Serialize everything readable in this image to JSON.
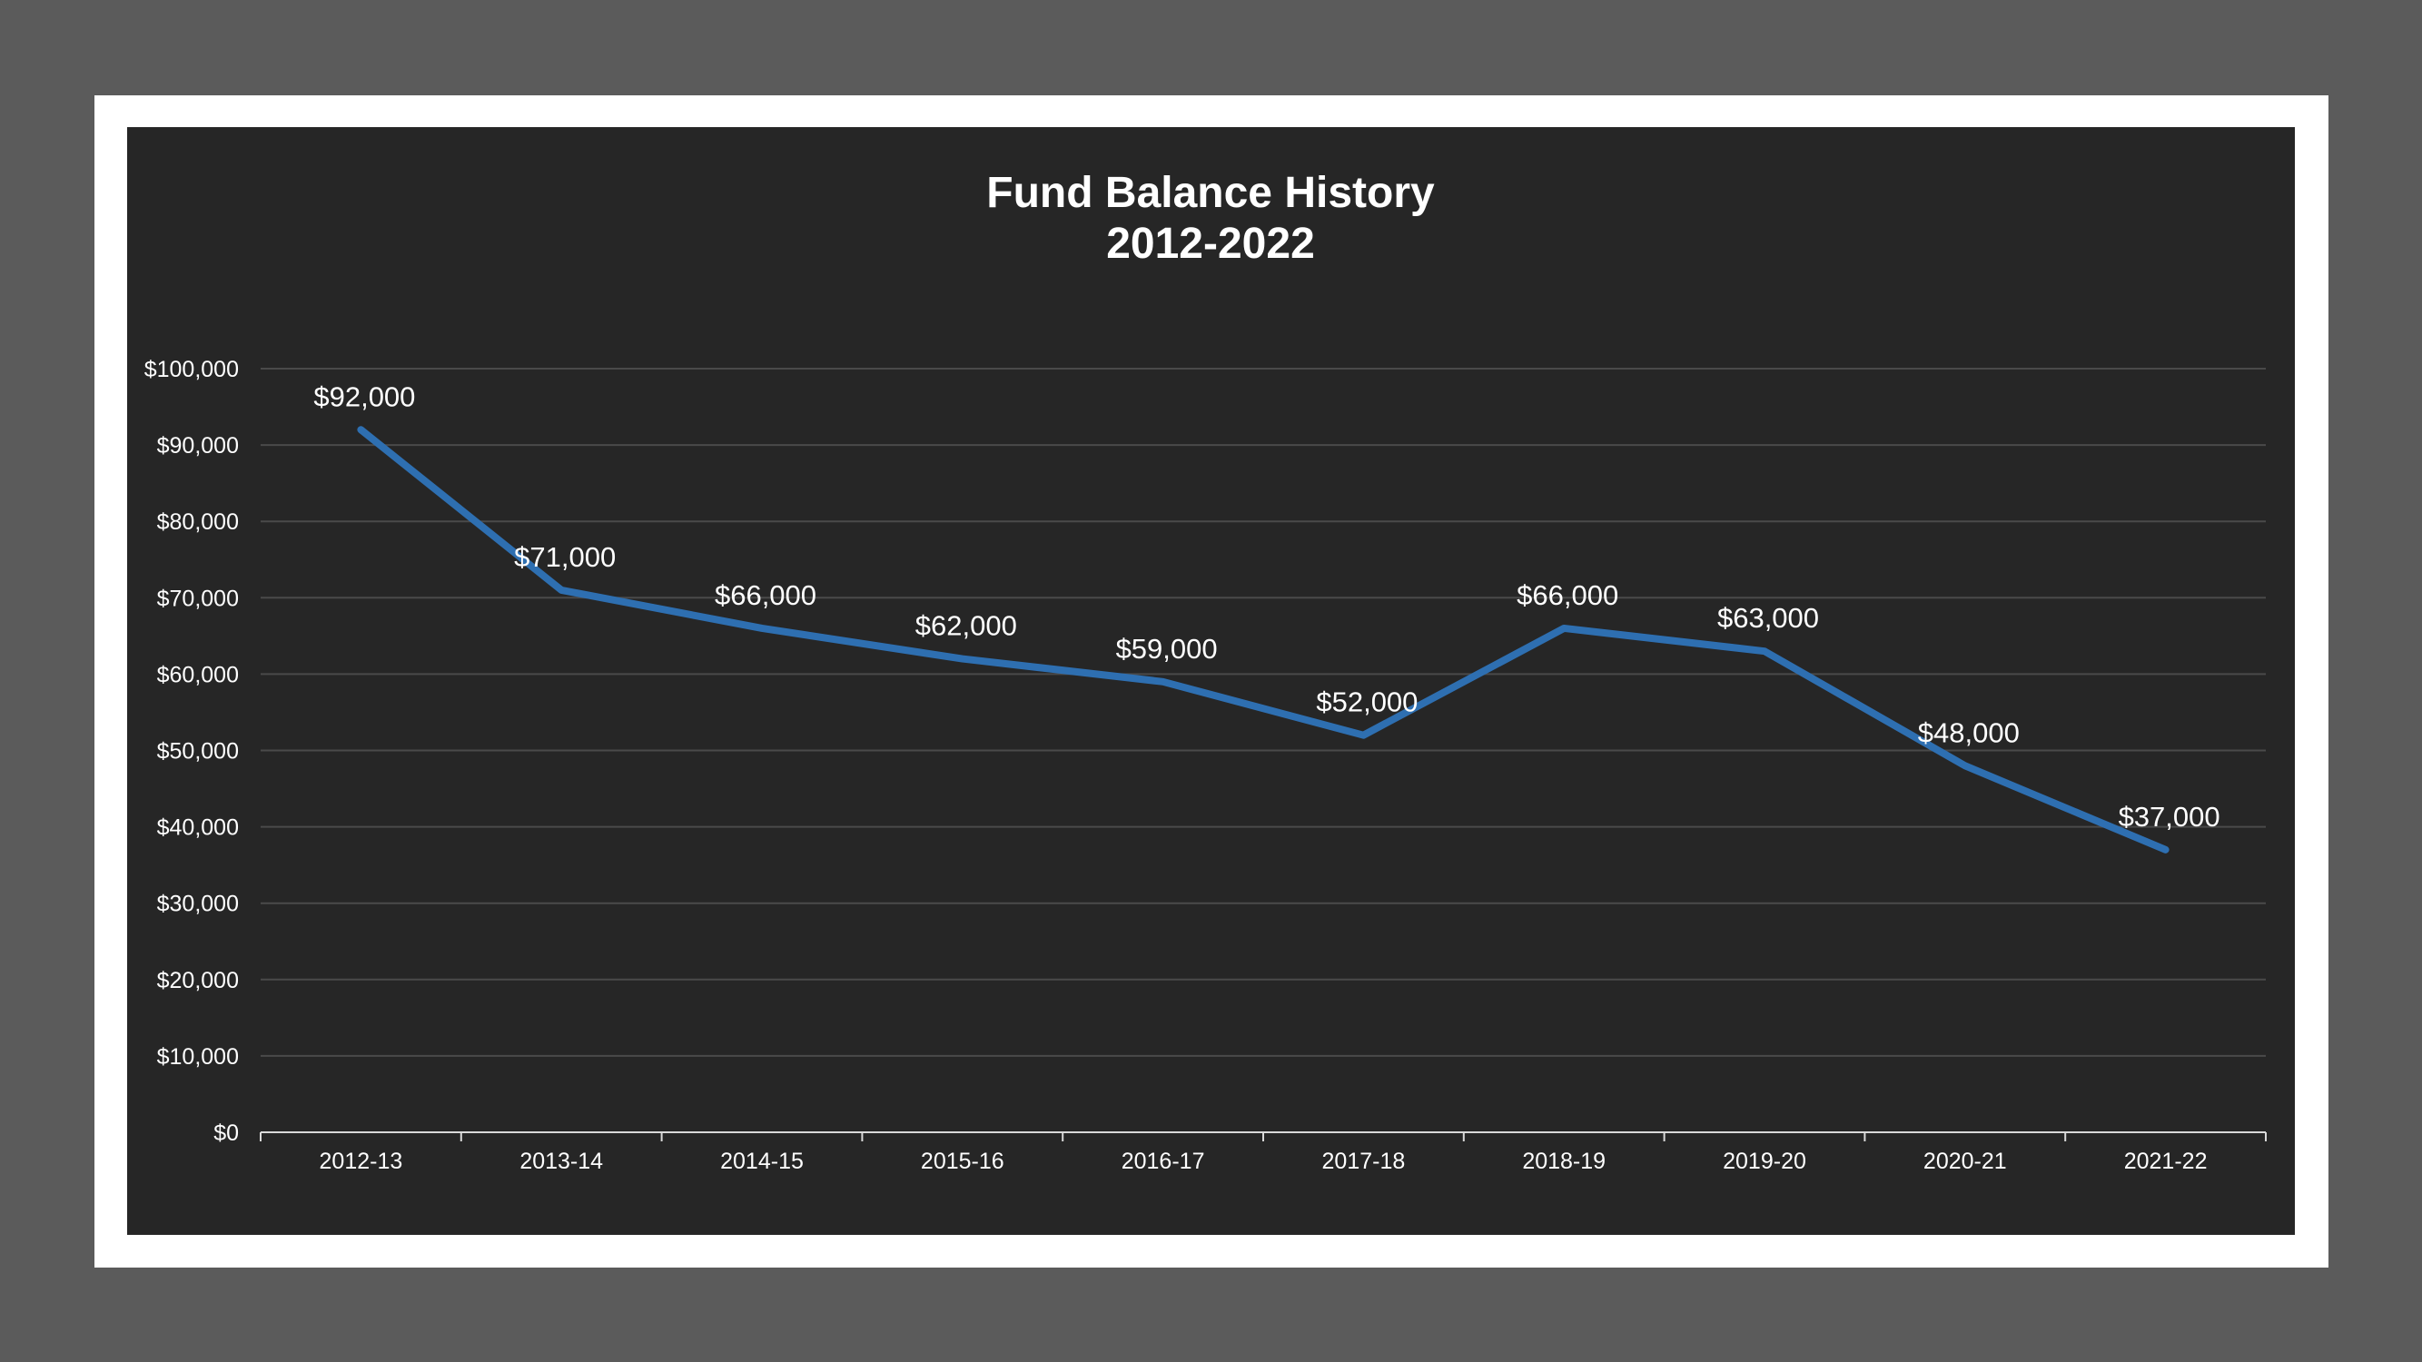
{
  "chart_data": {
    "type": "line",
    "title": "Fund Balance History",
    "subtitle": "2012-2022",
    "xlabel": "",
    "ylabel": "",
    "categories": [
      "2012-13",
      "2013-14",
      "2014-15",
      "2015-16",
      "2016-17",
      "2017-18",
      "2018-19",
      "2019-20",
      "2020-21",
      "2021-22"
    ],
    "series": [
      {
        "values": [
          92000,
          71000,
          66000,
          62000,
          59000,
          52000,
          66000,
          63000,
          48000,
          37000
        ],
        "data_labels": [
          "$92,000",
          "$71,000",
          "$66,000",
          "$62,000",
          "$59,000",
          "$52,000",
          "$66,000",
          "$63,000",
          "$48,000",
          "$37,000"
        ],
        "color": "#2e6fb1"
      }
    ],
    "ylim": [
      0,
      100000
    ],
    "yticks": [
      0,
      10000,
      20000,
      30000,
      40000,
      50000,
      60000,
      70000,
      80000,
      90000,
      100000
    ],
    "ytick_labels": [
      "$0",
      "$10,000",
      "$20,000",
      "$30,000",
      "$40,000",
      "$50,000",
      "$60,000",
      "$70,000",
      "$80,000",
      "$90,000",
      "$100,000"
    ],
    "grid": true,
    "legend": "none",
    "colors": {
      "page_bg": "#5b5b5b",
      "frame": "#ffffff",
      "plot_bg": "#262626",
      "grid": "#4a4a4a",
      "axis": "#d9d9d9",
      "text": "#ffffff"
    }
  }
}
